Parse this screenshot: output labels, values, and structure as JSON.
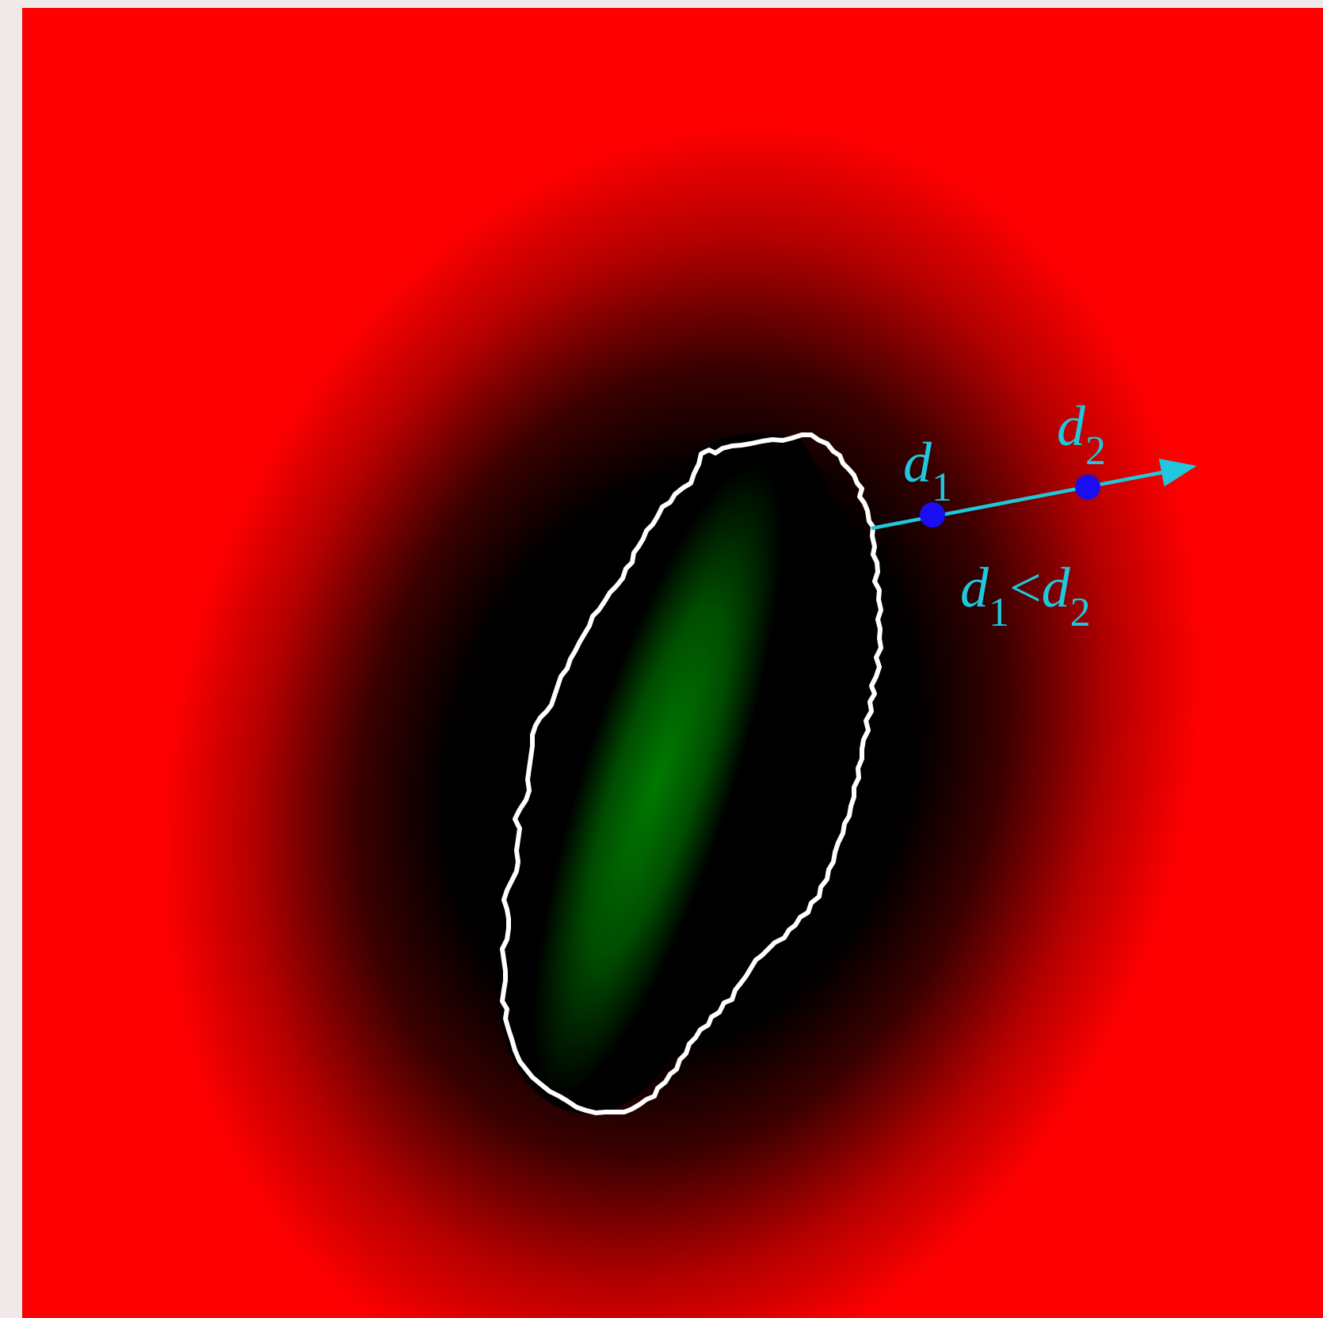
{
  "figure": {
    "colors": {
      "background_outside": "#ff0000",
      "transition": "#000000",
      "inside": "#007a00",
      "boundary": "#ffffff",
      "annotation": "#1fc8dc",
      "point": "#1a0df2",
      "margin": "#efe9e8"
    },
    "labels": {
      "d1": {
        "var": "d",
        "sub": "1"
      },
      "d2": {
        "var": "d",
        "sub": "2"
      },
      "relation": {
        "left_var": "d",
        "left_sub": "1",
        "op": "<",
        "right_var": "d",
        "right_sub": "2"
      }
    }
  }
}
